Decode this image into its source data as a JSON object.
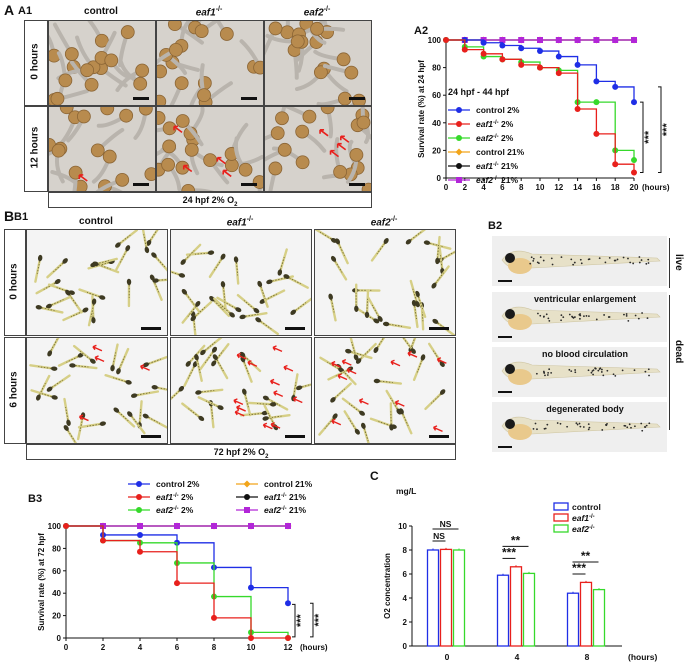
{
  "panelA": {
    "letter": "A",
    "sub1": "A1",
    "columns": [
      "control",
      "eaf1",
      "eaf2"
    ],
    "genotype_suffix": "-/-",
    "rows": [
      "0 hours",
      "12 hours"
    ],
    "condition": "24 hpf   2% O",
    "condition_sub": "2"
  },
  "panelB": {
    "letter": "B",
    "sub1": "B1",
    "columns": [
      "control",
      "eaf1",
      "eaf2"
    ],
    "genotype_suffix": "-/-",
    "rows": [
      "0 hours",
      "6 hours"
    ],
    "condition": "72 hpf   2% O",
    "condition_sub": "2"
  },
  "panelB2": {
    "label": "B2",
    "captions": [
      "ventricular enlargement",
      "no blood circulation",
      "degenerated body"
    ],
    "side_live": "live",
    "side_dead": "dead"
  },
  "colors": {
    "control2": "#1f2ee6",
    "eaf1_2": "#e8201c",
    "eaf2_2": "#36d92b",
    "control21": "#f2a51a",
    "eaf1_21": "#111111",
    "eaf2_21": "#b226d8",
    "arrow": "#e8201c"
  },
  "chart_data": [
    {
      "id": "A2",
      "type": "line",
      "title": "A2",
      "subtitle": "24 hpf - 44 hpf",
      "ylabel": "Survival rate (%) at 24 hpf",
      "xlabel": "(hours)",
      "xlim": [
        0,
        20
      ],
      "ylim": [
        0,
        100
      ],
      "x_ticks": [
        0,
        2,
        4,
        6,
        8,
        10,
        12,
        14,
        16,
        18,
        20
      ],
      "y_ticks": [
        0,
        20,
        40,
        60,
        80,
        100
      ],
      "legend_position": "left-middle",
      "significance": [
        "***",
        "***"
      ],
      "series": [
        {
          "name": "control 2%",
          "key": "control2",
          "x": [
            0,
            2,
            4,
            6,
            8,
            10,
            12,
            14,
            16,
            18,
            20
          ],
          "values": [
            100,
            100,
            98,
            96,
            94,
            92,
            88,
            82,
            70,
            66,
            55
          ],
          "marker": "circle"
        },
        {
          "name": "eaf1 2%",
          "key": "eaf1_2",
          "x": [
            0,
            2,
            4,
            6,
            8,
            10,
            12,
            14,
            16,
            18,
            20
          ],
          "values": [
            100,
            93,
            90,
            86,
            82,
            80,
            76,
            50,
            32,
            10,
            4
          ],
          "marker": "circle"
        },
        {
          "name": "eaf2 2%",
          "key": "eaf2_2",
          "x": [
            0,
            2,
            4,
            6,
            8,
            10,
            12,
            14,
            16,
            18,
            20
          ],
          "values": [
            100,
            95,
            88,
            86,
            84,
            80,
            78,
            55,
            55,
            20,
            13
          ],
          "marker": "circle"
        },
        {
          "name": "control 21%",
          "key": "control21",
          "x": [
            0,
            2,
            4,
            6,
            8,
            10,
            12,
            14,
            16,
            18,
            20
          ],
          "values": [
            100,
            100,
            100,
            100,
            100,
            100,
            100,
            100,
            100,
            100,
            100
          ],
          "marker": "diamond"
        },
        {
          "name": "eaf1 21%",
          "key": "eaf1_21",
          "x": [
            0,
            2,
            4,
            6,
            8,
            10,
            12,
            14,
            16,
            18,
            20
          ],
          "values": [
            100,
            100,
            100,
            100,
            100,
            100,
            100,
            100,
            100,
            100,
            100
          ],
          "marker": "circle"
        },
        {
          "name": "eaf2 21%",
          "key": "eaf2_21",
          "x": [
            0,
            2,
            4,
            6,
            8,
            10,
            12,
            14,
            16,
            18,
            20
          ],
          "values": [
            100,
            100,
            100,
            100,
            100,
            100,
            100,
            100,
            100,
            100,
            100
          ],
          "marker": "square"
        }
      ]
    },
    {
      "id": "B3",
      "type": "line",
      "title": "B3",
      "ylabel": "Survival rate (%) at 72 hpf",
      "xlabel": "(hours)",
      "xlim": [
        0,
        12
      ],
      "ylim": [
        0,
        100
      ],
      "x_ticks": [
        0,
        2,
        4,
        6,
        8,
        10,
        12
      ],
      "y_ticks": [
        0,
        20,
        40,
        60,
        80,
        100
      ],
      "legend_position": "top",
      "significance": [
        "***",
        "***"
      ],
      "series": [
        {
          "name": "control 2%",
          "key": "control2",
          "x": [
            0,
            2,
            4,
            6,
            8,
            10,
            12
          ],
          "values": [
            100,
            92,
            92,
            85,
            63,
            45,
            31
          ],
          "marker": "circle"
        },
        {
          "name": "eaf1 2%",
          "key": "eaf1_2",
          "x": [
            0,
            2,
            4,
            6,
            8,
            10,
            12
          ],
          "values": [
            100,
            87,
            77,
            49,
            18,
            0,
            0
          ],
          "marker": "circle"
        },
        {
          "name": "eaf2 2%",
          "key": "eaf2_2",
          "x": [
            0,
            2,
            4,
            6,
            8,
            10,
            12
          ],
          "values": [
            100,
            87,
            85,
            67,
            37,
            5,
            0
          ],
          "marker": "circle"
        },
        {
          "name": "control 21%",
          "key": "control21",
          "x": [
            0,
            2,
            4,
            6,
            8,
            10,
            12
          ],
          "values": [
            100,
            100,
            100,
            100,
            100,
            100,
            100
          ],
          "marker": "diamond"
        },
        {
          "name": "eaf1 21%",
          "key": "eaf1_21",
          "x": [
            0,
            2,
            4,
            6,
            8,
            10,
            12
          ],
          "values": [
            100,
            100,
            100,
            100,
            100,
            100,
            100
          ],
          "marker": "circle"
        },
        {
          "name": "eaf2 21%",
          "key": "eaf2_21",
          "x": [
            0,
            2,
            4,
            6,
            8,
            10,
            12
          ],
          "values": [
            100,
            100,
            100,
            100,
            100,
            100,
            100
          ],
          "marker": "square"
        }
      ]
    },
    {
      "id": "C",
      "type": "bar",
      "title": "C",
      "unit": "mg/L",
      "ylabel": "O2 concentration",
      "xlabel": "(hours)",
      "categories": [
        "0",
        "4",
        "8"
      ],
      "ylim": [
        0,
        10
      ],
      "y_ticks": [
        0,
        2,
        4,
        6,
        8,
        10
      ],
      "legend_position": "top-right",
      "series": [
        {
          "name": "control",
          "key": "control2",
          "values": [
            8.0,
            5.9,
            4.4
          ]
        },
        {
          "name": "eaf1",
          "key": "eaf1_2",
          "values": [
            8.05,
            6.6,
            5.3
          ]
        },
        {
          "name": "eaf2",
          "key": "eaf2_2",
          "values": [
            8.0,
            6.05,
            4.7
          ]
        }
      ],
      "significance": [
        {
          "category": "0",
          "label": "NS",
          "pair": "control-eaf2"
        },
        {
          "category": "0",
          "label": "NS",
          "pair": "control-eaf1"
        },
        {
          "category": "4",
          "label": "**",
          "pair": "control-eaf2"
        },
        {
          "category": "4",
          "label": "***",
          "pair": "control-eaf1"
        },
        {
          "category": "8",
          "label": "**",
          "pair": "control-eaf2"
        },
        {
          "category": "8",
          "label": "***",
          "pair": "control-eaf1"
        }
      ]
    }
  ]
}
